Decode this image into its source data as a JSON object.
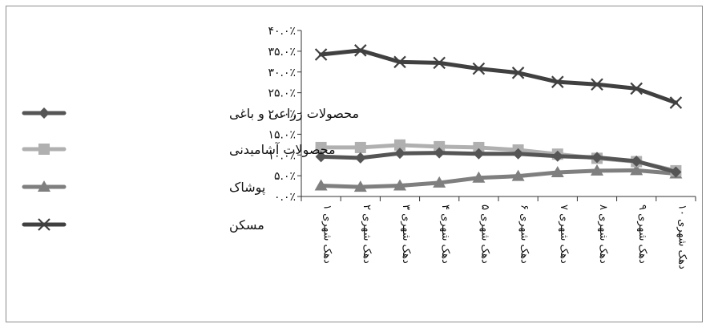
{
  "chart_data": {
    "type": "line",
    "title": "",
    "xlabel": "",
    "ylabel": "",
    "ylim": [
      0,
      40
    ],
    "y_ticks": [
      "۰.۰٪",
      "۵.۰٪",
      "۱۰.۰٪",
      "۱۵.۰٪",
      "۲۰.۰٪",
      "۲۵.۰٪",
      "۳۰.۰٪",
      "۳۵.۰٪",
      "۴۰.۰٪"
    ],
    "categories": [
      "دهک شهری ۱",
      "دهک شهری ۲",
      "دهک شهری ۳",
      "دهک شهری ۴",
      "دهک شهری ۵",
      "دهک شهری ۶",
      "دهک شهری ۷",
      "دهک شهری ۸",
      "دهک شهری ۹",
      "دهک شهری ۱۰"
    ],
    "grid": false,
    "legend_position": "left",
    "series": [
      {
        "name": "محصولات زراعی و باغی",
        "marker": "diamond",
        "color": "#555555",
        "values": [
          9.6,
          9.3,
          10.4,
          10.5,
          10.3,
          10.3,
          9.7,
          9.4,
          8.5,
          5.9
        ]
      },
      {
        "name": "محصولات آشامیدنی",
        "marker": "square",
        "color": "#b0b0b0",
        "values": [
          11.8,
          11.8,
          12.4,
          12.0,
          11.8,
          11.2,
          10.2,
          9.2,
          8.4,
          6.2
        ]
      },
      {
        "name": "پوشاک",
        "marker": "triangle",
        "color": "#7f7f7f",
        "values": [
          2.6,
          2.3,
          2.6,
          3.3,
          4.5,
          4.9,
          5.8,
          6.2,
          6.3,
          5.5
        ]
      },
      {
        "name": "مسکن",
        "marker": "x",
        "color": "#404040",
        "values": [
          34.2,
          35.2,
          32.4,
          32.2,
          30.8,
          29.8,
          27.6,
          27.0,
          26.0,
          22.6
        ]
      }
    ]
  }
}
